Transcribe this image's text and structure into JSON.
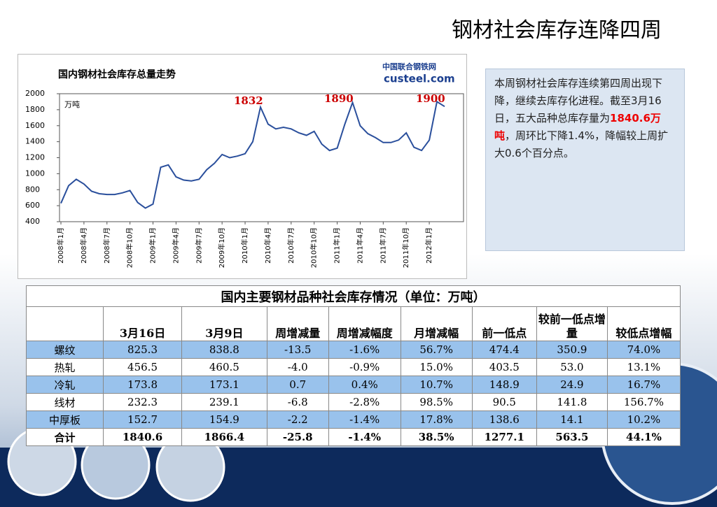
{
  "slide_title": "钢材社会库存连降四周",
  "chart_data": {
    "type": "line",
    "title": "国内钢材社会库存总量走势",
    "unit_label": "万吨",
    "logo": {
      "cn": "中国联合钢铁网",
      "en": "custeel.com"
    },
    "annotations": [
      "1832",
      "1890",
      "1900"
    ],
    "categories": [
      "2008年1月",
      null,
      null,
      "2008年4月",
      null,
      null,
      "2008年7月",
      null,
      null,
      "2008年10月",
      null,
      null,
      "2009年1月",
      null,
      null,
      "2009年4月",
      null,
      null,
      "2009年7月",
      null,
      null,
      "2009年10月",
      null,
      null,
      "2010年1月",
      null,
      null,
      "2010年4月",
      null,
      null,
      "2010年7月",
      null,
      null,
      "2010年10月",
      null,
      null,
      "2011年1月",
      null,
      null,
      "2011年4月",
      null,
      null,
      "2011年7月",
      null,
      null,
      "2011年10月",
      null,
      null,
      "2012年1月",
      null,
      null
    ],
    "values": [
      630,
      850,
      930,
      870,
      780,
      750,
      740,
      740,
      760,
      790,
      640,
      570,
      620,
      1080,
      1110,
      960,
      920,
      910,
      930,
      1050,
      1130,
      1240,
      1200,
      1220,
      1250,
      1400,
      1832,
      1620,
      1560,
      1580,
      1560,
      1510,
      1480,
      1530,
      1370,
      1290,
      1320,
      1620,
      1890,
      1600,
      1500,
      1450,
      1390,
      1390,
      1420,
      1510,
      1330,
      1290,
      1420,
      1900,
      1840
    ],
    "color": "#2a4f9c",
    "ylim": [
      400,
      2000
    ],
    "yticks": [
      400,
      600,
      800,
      1000,
      1200,
      1400,
      1600,
      1800,
      2000
    ],
    "grid": false
  },
  "note": {
    "before": "本周钢材社会库存连续第四周出现下降，继续去库存化进程。截至3月16日，五大品种总库存量为",
    "highlight": "1840.6万吨",
    "after": "，周环比下降1.4%，降幅较上周扩大0.6个百分点。"
  },
  "table": {
    "title": "国内主要钢材品种社会库存情况（单位：万吨）",
    "header": [
      null,
      "3月16日",
      "3月9日",
      "周增减量",
      "周增减幅度",
      "月增减幅",
      "前一低点",
      "较前一低点增量",
      "较低点增幅"
    ],
    "rows": [
      [
        "螺纹",
        "825.3",
        "838.8",
        "-13.5",
        "-1.6%",
        "56.7%",
        "474.4",
        "350.9",
        "74.0%"
      ],
      [
        "热轧",
        "456.5",
        "460.5",
        "-4.0",
        "-0.9%",
        "15.0%",
        "403.5",
        "53.0",
        "13.1%"
      ],
      [
        "冷轧",
        "173.8",
        "173.1",
        "0.7",
        "0.4%",
        "10.7%",
        "148.9",
        "24.9",
        "16.7%"
      ],
      [
        "线材",
        "232.3",
        "239.1",
        "-6.8",
        "-2.8%",
        "98.5%",
        "90.5",
        "141.8",
        "156.7%"
      ],
      [
        "中厚板",
        "152.7",
        "154.9",
        "-2.2",
        "-1.4%",
        "17.8%",
        "138.6",
        "14.1",
        "10.2%"
      ],
      [
        "合计",
        "1840.6",
        "1866.4",
        "-25.8",
        "-1.4%",
        "38.5%",
        "1277.1",
        "563.5",
        "44.1%"
      ]
    ]
  }
}
